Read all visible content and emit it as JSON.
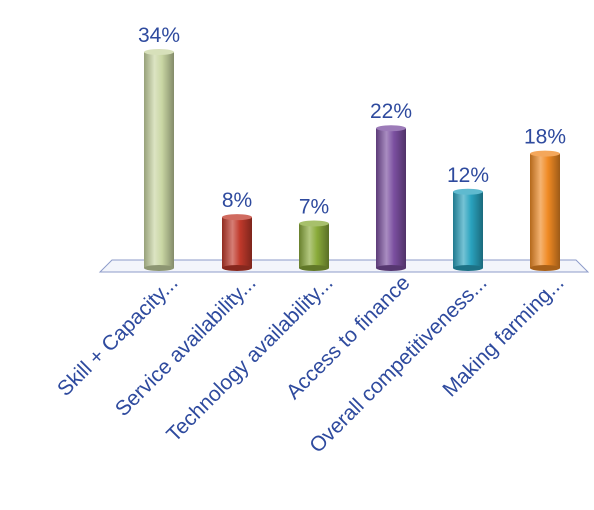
{
  "chart_data": {
    "type": "bar",
    "title": "",
    "xlabel": "",
    "ylabel": "",
    "ylim": [
      0,
      34
    ],
    "grid": false,
    "legend": "none",
    "categories": [
      "Skill + Capacity...",
      "Service availability...",
      "Technology availability...",
      "Access to finance",
      "Overall competitiveness...",
      "Making farming..."
    ],
    "values": [
      34,
      8,
      7,
      22,
      12,
      18
    ],
    "data_labels": [
      "34%",
      "8%",
      "7%",
      "22%",
      "12%",
      "18%"
    ],
    "unit": "%",
    "colors": [
      "#c9d6a3",
      "#c0392b",
      "#8aab3a",
      "#7b4fa0",
      "#2aa3bf",
      "#f08a24"
    ],
    "label_color": "#2e4a9e"
  }
}
